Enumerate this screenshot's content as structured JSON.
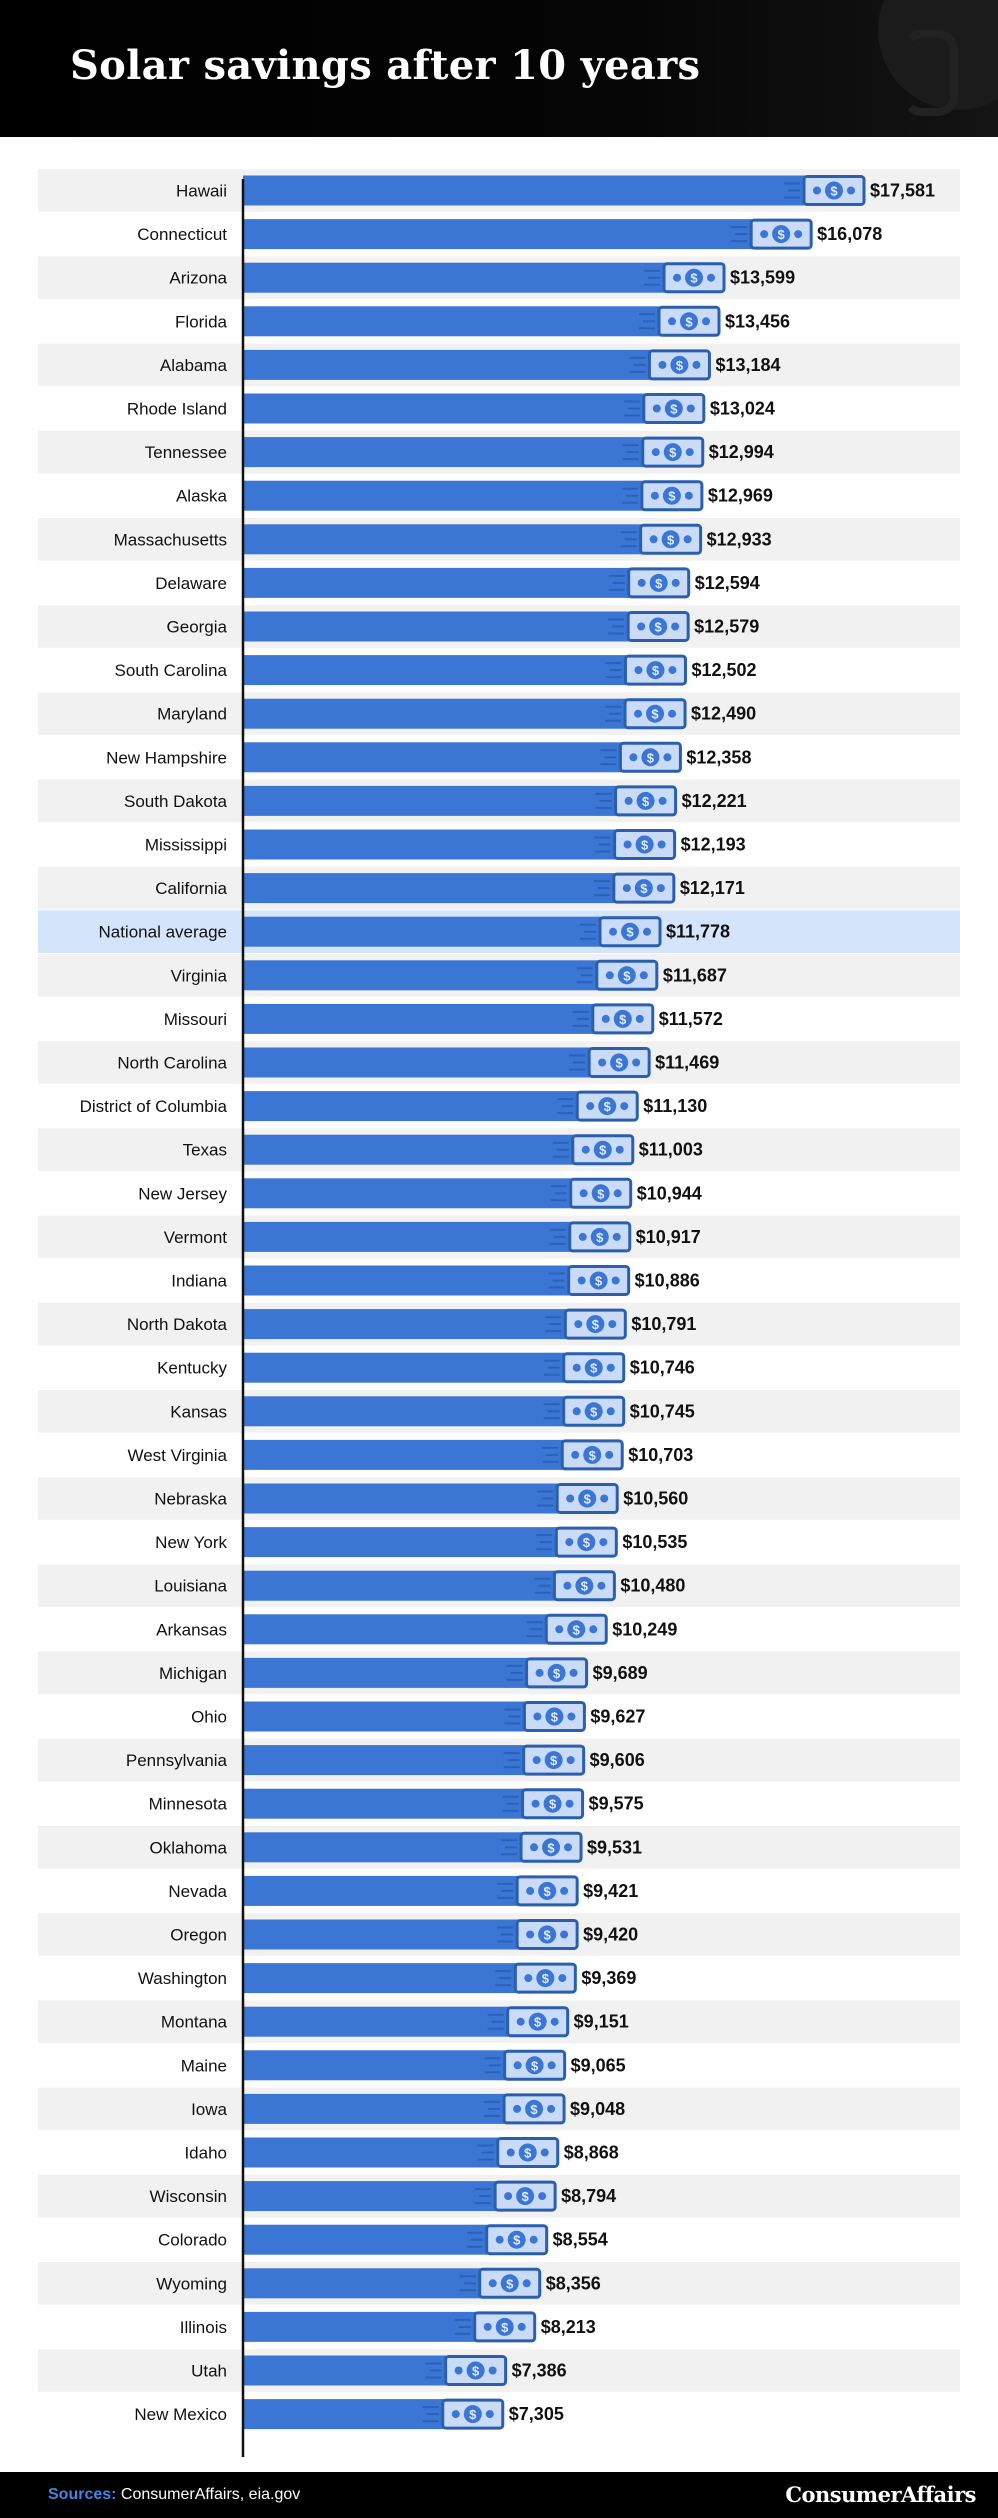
{
  "title": "Solar savings after 10 years",
  "sources_label": "Sources:",
  "sources_text": "ConsumerAffairs, eia.gov",
  "brand": "ConsumerAffairs",
  "colors": {
    "bar": "#3b76d4",
    "highlight_row": "#d3e4fb",
    "stripe": "#f1f1f1",
    "icon_fill": "#c9dbf7",
    "icon_stroke": "#2b5fae"
  },
  "chart_data": {
    "type": "bar",
    "orientation": "horizontal",
    "highlight": "National average",
    "categories": [
      "Hawaii",
      "Connecticut",
      "Arizona",
      "Florida",
      "Alabama",
      "Rhode Island",
      "Tennessee",
      "Alaska",
      "Massachusetts",
      "Delaware",
      "Georgia",
      "South Carolina",
      "Maryland",
      "New Hampshire",
      "South Dakota",
      "Mississippi",
      "California",
      "National average",
      "Virginia",
      "Missouri",
      "North Carolina",
      "District of Columbia",
      "Texas",
      "New Jersey",
      "Vermont",
      "Indiana",
      "North Dakota",
      "Kentucky",
      "Kansas",
      "West Virginia",
      "Nebraska",
      "New York",
      "Louisiana",
      "Arkansas",
      "Michigan",
      "Ohio",
      "Pennsylvania",
      "Minnesota",
      "Oklahoma",
      "Nevada",
      "Oregon",
      "Washington",
      "Montana",
      "Maine",
      "Iowa",
      "Idaho",
      "Wisconsin",
      "Colorado",
      "Wyoming",
      "Illinois",
      "Utah",
      "New Mexico"
    ],
    "values": [
      17581,
      16078,
      13599,
      13456,
      13184,
      13024,
      12994,
      12969,
      12933,
      12594,
      12579,
      12502,
      12490,
      12358,
      12221,
      12193,
      12171,
      11778,
      11687,
      11572,
      11469,
      11130,
      11003,
      10944,
      10917,
      10886,
      10791,
      10746,
      10745,
      10703,
      10560,
      10535,
      10480,
      10249,
      9689,
      9627,
      9606,
      9575,
      9531,
      9421,
      9420,
      9369,
      9151,
      9065,
      9048,
      8868,
      8794,
      8554,
      8356,
      8213,
      7386,
      7305
    ],
    "labels": [
      "$17,581",
      "$16,078",
      "$13,599",
      "$13,456",
      "$13,184",
      "$13,024",
      "$12,994",
      "$12,969",
      "$12,933",
      "$12,594",
      "$12,579",
      "$12,502",
      "$12,490",
      "$12,358",
      "$12,221",
      "$12,193",
      "$12,171",
      "$11,778",
      "$11,687",
      "$11,572",
      "$11,469",
      "$11,130",
      "$11,003",
      "$10,944",
      "$10,917",
      "$10,886",
      "$10,791",
      "$10,746",
      "$10,745",
      "$10,703",
      "$10,560",
      "$10,535",
      "$10,480",
      "$10,249",
      "$9,689",
      "$9,627",
      "$9,606",
      "$9,575",
      "$9,531",
      "$9,421",
      "$9,420",
      "$9,369",
      "$9,151",
      "$9,065",
      "$9,048",
      "$8,868",
      "$8,794",
      "$8,554",
      "$8,356",
      "$8,213",
      "$7,386",
      "$7,305"
    ]
  }
}
